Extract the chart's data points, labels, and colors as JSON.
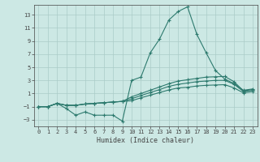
{
  "title": "",
  "xlabel": "Humidex (Indice chaleur)",
  "x_values": [
    0,
    1,
    2,
    3,
    4,
    5,
    6,
    7,
    8,
    9,
    10,
    11,
    12,
    13,
    14,
    15,
    16,
    17,
    18,
    19,
    20,
    21,
    22,
    23
  ],
  "line1_y": [
    -1,
    -1,
    -0.5,
    -1.3,
    -2.3,
    -1.8,
    -2.3,
    -2.3,
    -2.3,
    -3.2,
    3.0,
    3.5,
    7.2,
    9.3,
    12.2,
    13.5,
    14.2,
    10.0,
    7.2,
    4.5,
    3.2,
    2.5,
    1.5,
    1.7
  ],
  "line2_y": [
    -1,
    -1,
    -0.5,
    -0.8,
    -0.8,
    -0.6,
    -0.5,
    -0.4,
    -0.3,
    -0.2,
    0.5,
    1.0,
    1.5,
    2.0,
    2.5,
    2.9,
    3.1,
    3.3,
    3.5,
    3.55,
    3.6,
    2.8,
    1.4,
    1.6
  ],
  "line3_y": [
    -1,
    -1,
    -0.5,
    -0.8,
    -0.8,
    -0.6,
    -0.5,
    -0.4,
    -0.3,
    -0.2,
    0.2,
    0.7,
    1.15,
    1.6,
    2.1,
    2.4,
    2.6,
    2.8,
    2.9,
    3.0,
    3.0,
    2.4,
    1.3,
    1.5
  ],
  "line4_y": [
    -1,
    -1,
    -0.5,
    -0.8,
    -0.8,
    -0.6,
    -0.5,
    -0.4,
    -0.3,
    -0.2,
    -0.1,
    0.35,
    0.75,
    1.15,
    1.55,
    1.85,
    1.95,
    2.15,
    2.25,
    2.3,
    2.35,
    1.85,
    1.1,
    1.3
  ],
  "line_color": "#2d7a6e",
  "bg_color": "#cce8e4",
  "grid_color": "#aaccc8",
  "axis_color": "#444444",
  "ylim": [
    -4,
    14.5
  ],
  "yticks": [
    -3,
    -1,
    1,
    3,
    5,
    7,
    9,
    11,
    13
  ],
  "xlim": [
    -0.5,
    23.5
  ],
  "xticks": [
    0,
    1,
    2,
    3,
    4,
    5,
    6,
    7,
    8,
    9,
    10,
    11,
    12,
    13,
    14,
    15,
    16,
    17,
    18,
    19,
    20,
    21,
    22,
    23
  ]
}
